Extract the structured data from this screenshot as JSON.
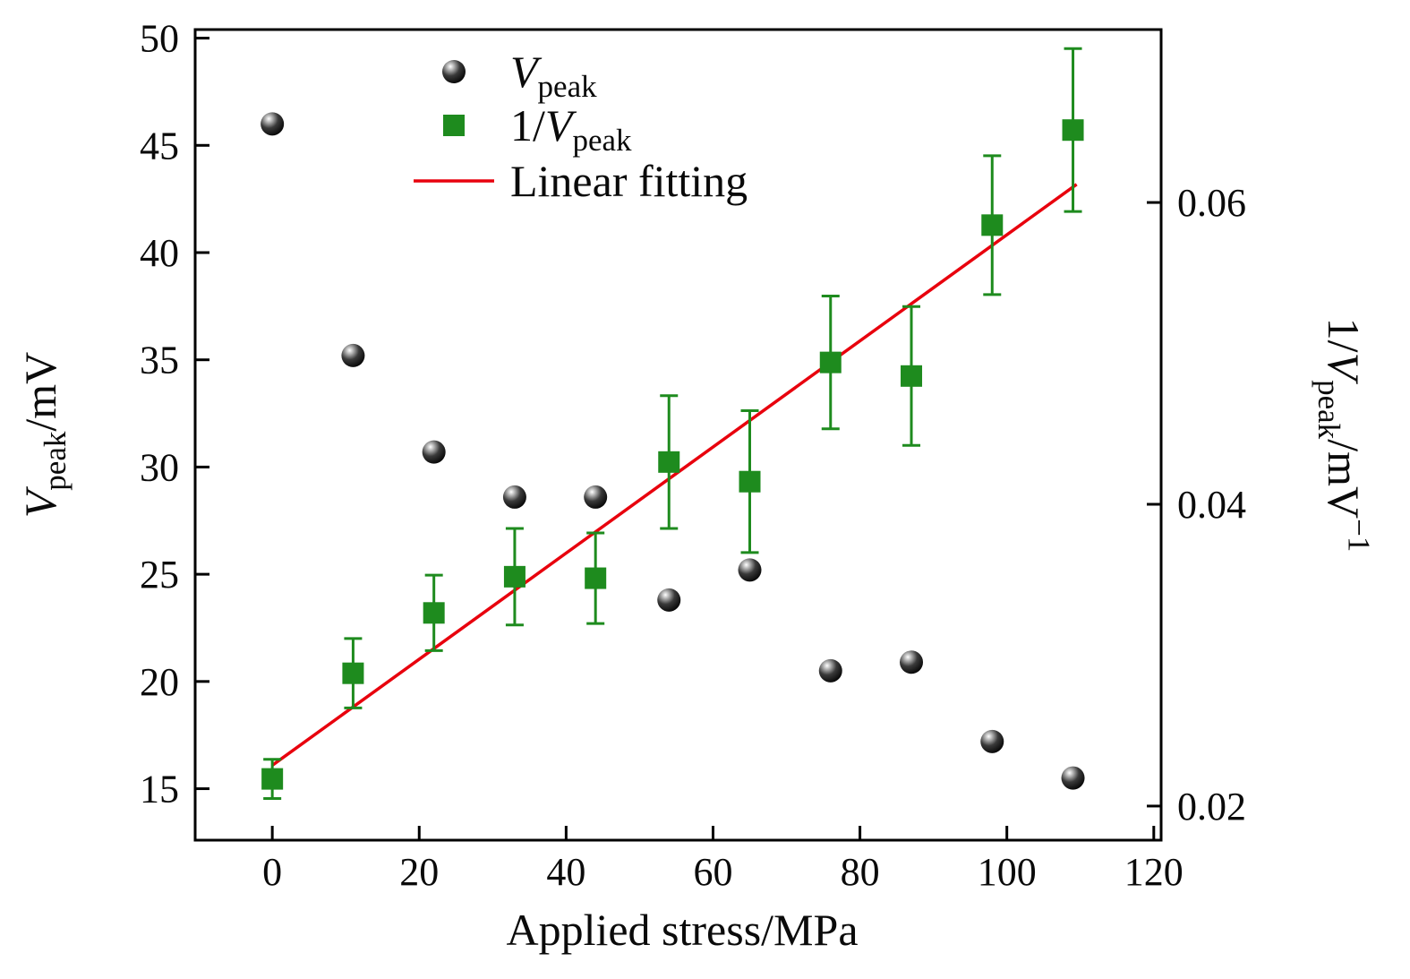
{
  "figure": {
    "background": "#ffffff"
  },
  "chart_data": {
    "type": "scatter",
    "xlabel": "Applied stress/MPa",
    "ylabel_left": "V_peak/mV",
    "ylabel_left_segments": [
      {
        "t": "V",
        "italic": true
      },
      {
        "t": "peak",
        "sub": true
      },
      {
        "t": "/mV"
      }
    ],
    "ylabel_right": "1/V_peak/mV−1",
    "ylabel_right_segments": [
      {
        "t": "1/"
      },
      {
        "t": "V",
        "italic": true
      },
      {
        "t": "peak",
        "sub": true
      },
      {
        "t": "/mV"
      },
      {
        "t": "−1",
        "sup": true
      }
    ],
    "xlim": [
      -10.5,
      121
    ],
    "xticks": [
      0,
      20,
      40,
      60,
      80,
      100,
      120
    ],
    "ylim_left": [
      12.6,
      50.4
    ],
    "yticks_left": [
      15,
      20,
      25,
      30,
      35,
      40,
      45,
      50
    ],
    "ylim_right": [
      0.01774,
      0.07146
    ],
    "yticks_right_values": [
      0.02,
      0.04,
      0.06
    ],
    "yticks_right_labels": [
      "0.02",
      "0.04",
      "0.06"
    ],
    "grid": false,
    "legend_position": "upper-left-inside",
    "x": [
      0,
      11,
      22,
      33,
      44,
      54,
      65,
      76,
      87,
      98,
      109
    ],
    "series": [
      {
        "id": "vpeak",
        "legend_segments": [
          {
            "t": "V",
            "italic": true
          },
          {
            "t": "peak",
            "sub": true
          }
        ],
        "marker": "sphere",
        "color": "#111111",
        "axis": "left",
        "values": [
          46.0,
          35.2,
          30.7,
          28.6,
          28.6,
          23.8,
          25.2,
          20.5,
          20.9,
          17.2,
          15.5
        ]
      },
      {
        "id": "inv-vpeak",
        "legend_segments": [
          {
            "t": "1/"
          },
          {
            "t": "V",
            "italic": true
          },
          {
            "t": "peak",
            "sub": true
          }
        ],
        "marker": "square",
        "color": "#1e8b1e",
        "axis": "right",
        "values": [
          0.0218,
          0.0288,
          0.0328,
          0.0352,
          0.0351,
          0.0428,
          0.0415,
          0.0494,
          0.0485,
          0.0585,
          0.0648
        ],
        "errors": [
          0.0013,
          0.0023,
          0.0025,
          0.0032,
          0.003,
          0.0044,
          0.0047,
          0.0044,
          0.0046,
          0.0046,
          0.0054
        ]
      },
      {
        "id": "linear-fit",
        "legend_segments": [
          {
            "t": "Linear fitting"
          }
        ],
        "marker": "line",
        "color": "#e8000d",
        "axis": "right",
        "line_points": [
          [
            0,
            0.0227
          ],
          [
            109.5,
            0.0612
          ]
        ]
      }
    ]
  }
}
